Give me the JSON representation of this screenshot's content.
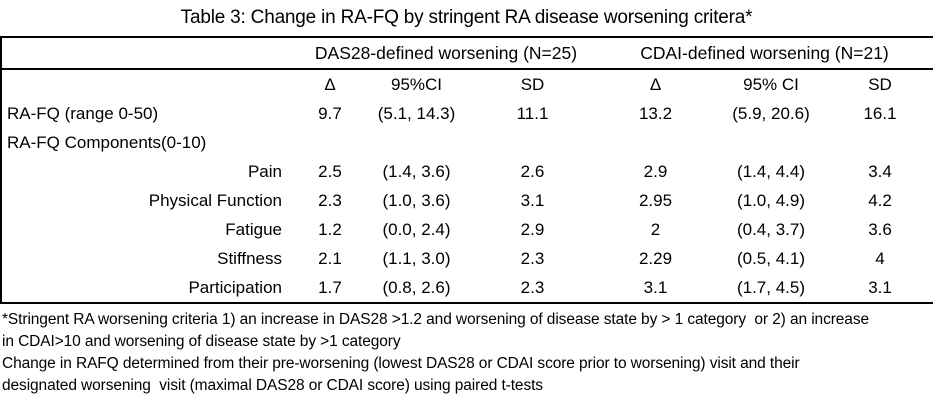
{
  "title": "Table 3: Change in RA-FQ by stringent RA disease worsening critera*",
  "table": {
    "groups": [
      {
        "label": "DAS28-defined worsening (N=25)"
      },
      {
        "label": "CDAI-defined worsening (N=21)"
      }
    ],
    "sub_headers": [
      "Δ",
      "95%CI",
      "SD",
      "Δ",
      "95% CI",
      "SD"
    ],
    "rows": [
      {
        "label": "RA-FQ (range 0-50)",
        "align": "left",
        "values": [
          "9.7",
          "(5.1, 14.3)",
          "11.1",
          "13.2",
          "(5.9, 20.6)",
          "16.1"
        ]
      },
      {
        "label": "RA-FQ Components(0-10)",
        "align": "left",
        "values": [
          "",
          "",
          "",
          "",
          "",
          ""
        ]
      },
      {
        "label": "Pain",
        "align": "right",
        "values": [
          "2.5",
          "(1.4, 3.6)",
          "2.6",
          "2.9",
          "(1.4, 4.4)",
          "3.4"
        ]
      },
      {
        "label": "Physical Function",
        "align": "right",
        "values": [
          "2.3",
          "(1.0, 3.6)",
          "3.1",
          "2.95",
          "(1.0, 4.9)",
          "4.2"
        ]
      },
      {
        "label": "Fatigue",
        "align": "right",
        "values": [
          "1.2",
          "(0.0, 2.4)",
          "2.9",
          "2",
          "(0.4, 3.7)",
          "3.6"
        ]
      },
      {
        "label": "Stiffness",
        "align": "right",
        "values": [
          "2.1",
          "(1.1, 3.0)",
          "2.3",
          "2.29",
          "(0.5, 4.1)",
          "4"
        ]
      },
      {
        "label": "Participation",
        "align": "right",
        "values": [
          "1.7",
          "(0.8, 2.6)",
          "2.3",
          "3.1",
          "(1.7, 4.5)",
          "3.1"
        ]
      }
    ],
    "cell_names": [
      "cell-delta-das28",
      "cell-ci-das28",
      "cell-sd-das28",
      "cell-delta-cdai",
      "cell-ci-cdai",
      "cell-sd-cdai"
    ]
  },
  "footnotes": [
    "*Stringent RA worsening criteria 1) an increase in DAS28 >1.2 and worsening of disease state by > 1 category  or 2) an increase",
    "in CDAI>10 and worsening of disease state by >1 category",
    "Change in RAFQ determined from their pre-worsening (lowest DAS28 or CDAI score prior to worsening) visit and their",
    "designated worsening  visit (maximal DAS28 or CDAI score) using paired t-tests"
  ]
}
